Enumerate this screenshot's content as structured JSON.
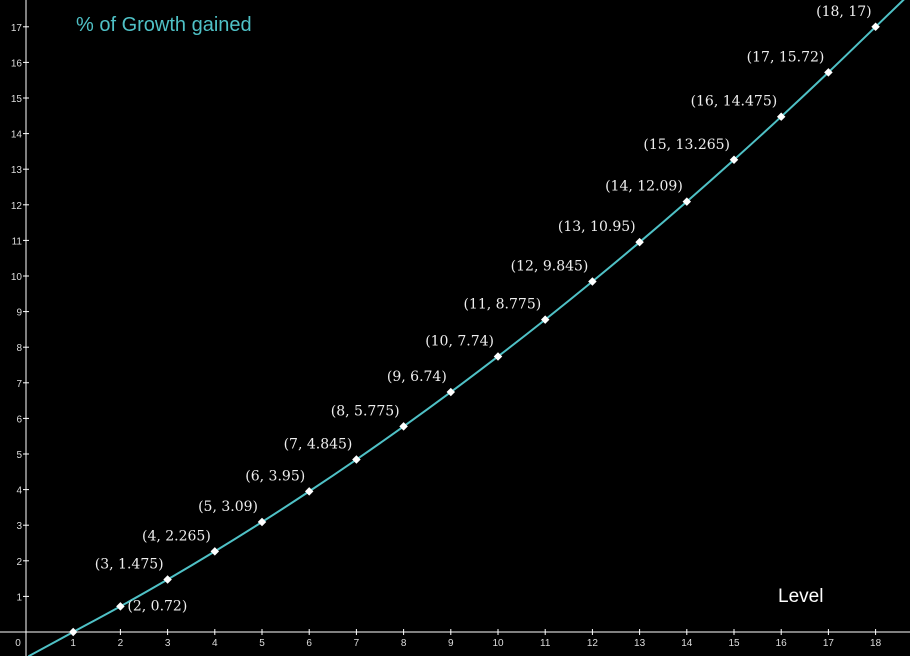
{
  "chart_data": {
    "type": "line",
    "title": "% of Growth gained",
    "xlabel": "Level",
    "ylabel": "",
    "xlim": [
      0,
      18.7
    ],
    "ylim": [
      0,
      17.6
    ],
    "x_ticks": [
      0,
      1,
      2,
      3,
      4,
      5,
      6,
      7,
      8,
      9,
      10,
      11,
      12,
      13,
      14,
      15,
      16,
      17,
      18
    ],
    "y_ticks": [
      1,
      2,
      3,
      4,
      5,
      6,
      7,
      8,
      9,
      10,
      11,
      12,
      13,
      14,
      15,
      16,
      17
    ],
    "grid": false,
    "colors": {
      "background": "#000000",
      "curve": "#4fc1c6",
      "points": "#ffffff",
      "axes": "#ffffff",
      "title": "#4fc1c6"
    },
    "series": [
      {
        "x": [
          1,
          2,
          3,
          4,
          5,
          6,
          7,
          8,
          9,
          10,
          11,
          12,
          13,
          14,
          15,
          16,
          17,
          18
        ],
        "values": [
          0,
          0.72,
          1.475,
          2.265,
          3.09,
          3.95,
          4.845,
          5.775,
          6.74,
          7.74,
          8.775,
          9.845,
          10.95,
          12.09,
          13.265,
          14.475,
          15.72,
          17
        ]
      }
    ],
    "point_labels": [
      "",
      "(2, 0.72)",
      "(3, 1.475)",
      "(4, 2.265)",
      "(5, 3.09)",
      "(6, 3.95)",
      "(7, 4.845)",
      "(8, 5.775)",
      "(9, 6.74)",
      "(10, 7.74)",
      "(11, 8.775)",
      "(12, 9.845)",
      "(13, 10.95)",
      "(14, 12.09)",
      "(15, 13.265)",
      "(16, 14.475)",
      "(17, 15.72)",
      "(18, 17)"
    ]
  }
}
